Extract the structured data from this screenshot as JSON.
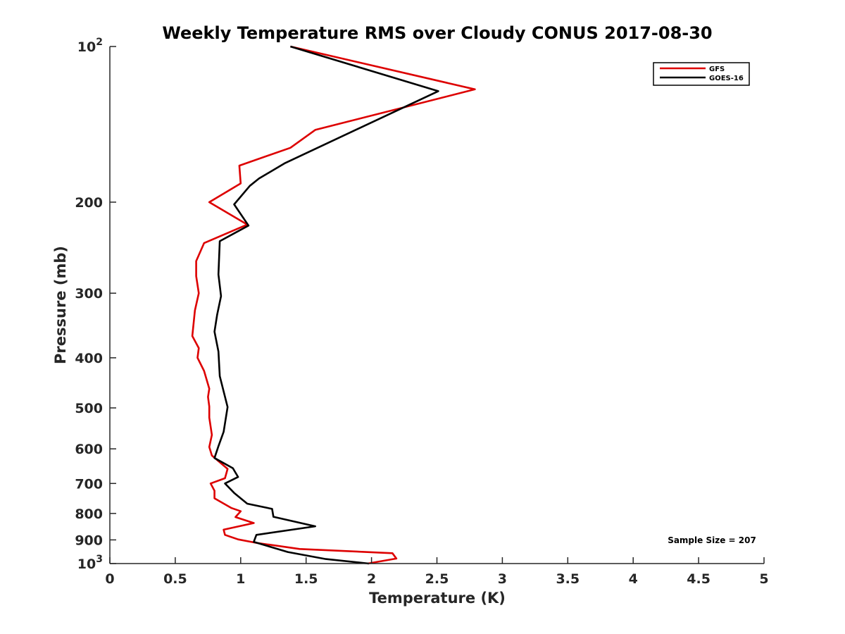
{
  "chart_data": {
    "type": "line",
    "title": "Weekly Temperature RMS over Cloudy CONUS 2017-08-30",
    "xlabel": "Temperature (K)",
    "ylabel": "Pressure (mb)",
    "xlim": [
      0,
      5
    ],
    "ylim": [
      100,
      1000
    ],
    "y_scale": "log",
    "y_reversed": true,
    "grid": false,
    "legend_position": "top-right",
    "x_ticks": [
      {
        "value": 0,
        "label": "0"
      },
      {
        "value": 0.5,
        "label": "0.5"
      },
      {
        "value": 1,
        "label": "1"
      },
      {
        "value": 1.5,
        "label": "1.5"
      },
      {
        "value": 2,
        "label": "2"
      },
      {
        "value": 2.5,
        "label": "2.5"
      },
      {
        "value": 3,
        "label": "3"
      },
      {
        "value": 3.5,
        "label": "3.5"
      },
      {
        "value": 4,
        "label": "4"
      },
      {
        "value": 4.5,
        "label": "4.5"
      },
      {
        "value": 5,
        "label": "5"
      }
    ],
    "y_ticks": [
      {
        "value": 100,
        "base": "10",
        "exp": "2"
      },
      {
        "value": 200,
        "label": "200"
      },
      {
        "value": 300,
        "label": "300"
      },
      {
        "value": 400,
        "label": "400"
      },
      {
        "value": 500,
        "label": "500"
      },
      {
        "value": 600,
        "label": "600"
      },
      {
        "value": 700,
        "label": "700"
      },
      {
        "value": 800,
        "label": "800"
      },
      {
        "value": 900,
        "label": "900"
      },
      {
        "value": 1000,
        "base": "10",
        "exp": "3"
      }
    ],
    "annotation": "Sample Size = 207",
    "series": [
      {
        "name": "GFS",
        "color": "#dd0000",
        "points": [
          [
            1.38,
            100
          ],
          [
            2.79,
            121
          ],
          [
            1.57,
            145
          ],
          [
            1.38,
            157
          ],
          [
            0.99,
            170
          ],
          [
            1.0,
            184
          ],
          [
            0.76,
            200
          ],
          [
            1.05,
            221
          ],
          [
            0.72,
            240
          ],
          [
            0.66,
            260
          ],
          [
            0.66,
            278
          ],
          [
            0.68,
            300
          ],
          [
            0.65,
            324
          ],
          [
            0.63,
            363
          ],
          [
            0.68,
            383
          ],
          [
            0.67,
            400
          ],
          [
            0.72,
            424
          ],
          [
            0.76,
            459
          ],
          [
            0.75,
            476
          ],
          [
            0.76,
            497
          ],
          [
            0.76,
            522
          ],
          [
            0.78,
            564
          ],
          [
            0.76,
            595
          ],
          [
            0.78,
            618
          ],
          [
            0.9,
            656
          ],
          [
            0.88,
            684
          ],
          [
            0.77,
            700
          ],
          [
            0.8,
            723
          ],
          [
            0.8,
            748
          ],
          [
            0.93,
            781
          ],
          [
            1.0,
            792
          ],
          [
            0.96,
            813
          ],
          [
            1.1,
            835
          ],
          [
            0.87,
            860
          ],
          [
            0.88,
            880
          ],
          [
            0.98,
            898
          ],
          [
            1.12,
            912
          ],
          [
            1.45,
            937
          ],
          [
            2.16,
            955
          ],
          [
            2.19,
            978
          ],
          [
            1.97,
            1000
          ]
        ]
      },
      {
        "name": "GOES-16",
        "color": "#000000",
        "points": [
          [
            1.38,
            100
          ],
          [
            2.51,
            122
          ],
          [
            1.34,
            168
          ],
          [
            1.14,
            180
          ],
          [
            1.07,
            186
          ],
          [
            0.95,
            202
          ],
          [
            1.06,
            222
          ],
          [
            0.84,
            238
          ],
          [
            0.83,
            276
          ],
          [
            0.85,
            304
          ],
          [
            0.82,
            330
          ],
          [
            0.8,
            356
          ],
          [
            0.83,
            389
          ],
          [
            0.84,
            434
          ],
          [
            0.9,
            498
          ],
          [
            0.87,
            556
          ],
          [
            0.83,
            593
          ],
          [
            0.8,
            625
          ],
          [
            0.94,
            654
          ],
          [
            0.98,
            680
          ],
          [
            0.88,
            700
          ],
          [
            0.95,
            730
          ],
          [
            1.05,
            766
          ],
          [
            1.24,
            784
          ],
          [
            1.25,
            812
          ],
          [
            1.57,
            847
          ],
          [
            1.12,
            880
          ],
          [
            1.1,
            908
          ],
          [
            1.36,
            950
          ],
          [
            1.65,
            980
          ],
          [
            1.98,
            1000
          ]
        ]
      }
    ]
  }
}
